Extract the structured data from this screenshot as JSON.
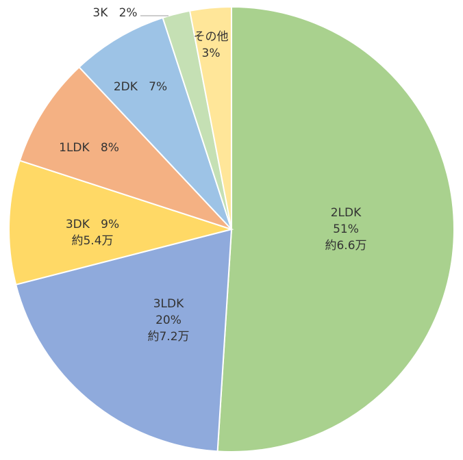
{
  "chart_data": {
    "type": "pie",
    "title": "",
    "start": "top",
    "direction": "clockwise",
    "slices": [
      {
        "name": "2LDK",
        "value": 51,
        "pct_label": "51%",
        "note": "約6.6万",
        "color": "#A9D18E"
      },
      {
        "name": "3LDK",
        "value": 20,
        "pct_label": "20%",
        "note": "約7.2万",
        "color": "#8FAADC"
      },
      {
        "name": "3DK",
        "value": 9,
        "pct_label": "9%",
        "note": "約5.4万",
        "color": "#FFD966"
      },
      {
        "name": "1LDK",
        "value": 8,
        "pct_label": "8%",
        "color": "#F4B183"
      },
      {
        "name": "2DK",
        "value": 7,
        "pct_label": "7%",
        "color": "#9DC3E6"
      },
      {
        "name": "3K",
        "value": 2,
        "pct_label": "2%",
        "color": "#C5E0B4"
      },
      {
        "name": "その他",
        "value": 3,
        "pct_label": "3%",
        "color": "#FFE699"
      }
    ]
  }
}
